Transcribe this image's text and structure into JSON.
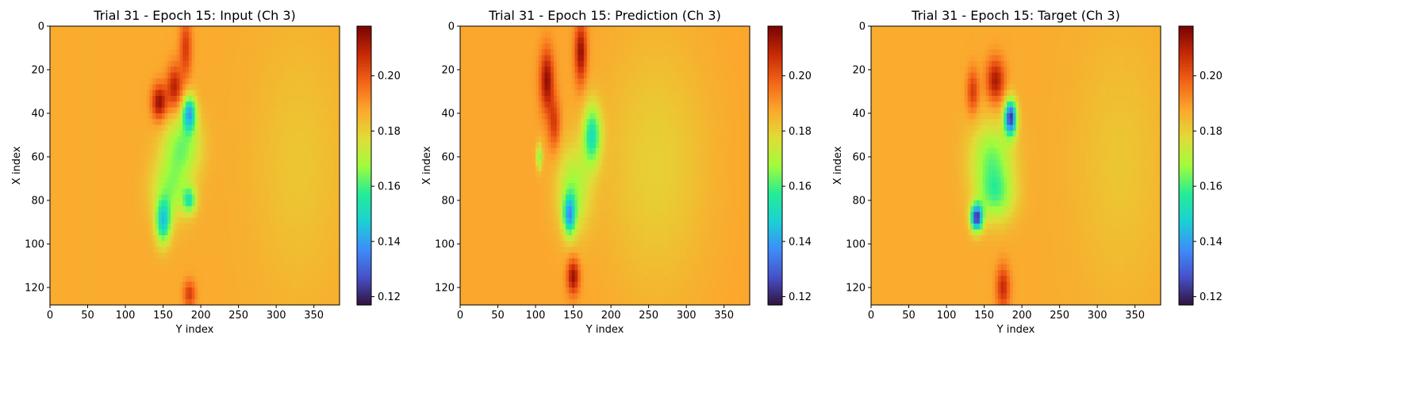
{
  "chart_data": [
    {
      "type": "heatmap",
      "title": "Trial 31 - Epoch 15: Input (Ch 3)",
      "xlabel": "Y index",
      "ylabel": "X index",
      "xlim": [
        0,
        384
      ],
      "ylim": [
        128,
        0
      ],
      "x_ticks": [
        0,
        50,
        100,
        150,
        200,
        250,
        300,
        350
      ],
      "y_ticks": [
        0,
        20,
        40,
        60,
        80,
        100,
        120
      ],
      "colorbar": {
        "range": [
          0.117,
          0.218
        ],
        "ticks": [
          0.12,
          0.14,
          0.16,
          0.18,
          0.2
        ],
        "tick_labels": [
          "0.12",
          "0.14",
          "0.16",
          "0.18",
          "0.20"
        ],
        "colormap": "turbo"
      },
      "background_value": 0.187,
      "features": [
        {
          "x": 165,
          "y": 28,
          "sx": 10,
          "sy": 10,
          "v": 0.21
        },
        {
          "x": 145,
          "y": 35,
          "sx": 10,
          "sy": 8,
          "v": 0.215
        },
        {
          "x": 180,
          "y": 10,
          "sx": 8,
          "sy": 14,
          "v": 0.205
        },
        {
          "x": 185,
          "y": 40,
          "sx": 9,
          "sy": 8,
          "v": 0.145
        },
        {
          "x": 175,
          "y": 55,
          "sx": 25,
          "sy": 14,
          "v": 0.165
        },
        {
          "x": 150,
          "y": 90,
          "sx": 10,
          "sy": 10,
          "v": 0.15
        },
        {
          "x": 160,
          "y": 75,
          "sx": 25,
          "sy": 14,
          "v": 0.168
        },
        {
          "x": 185,
          "y": 80,
          "sx": 9,
          "sy": 6,
          "v": 0.16
        },
        {
          "x": 185,
          "y": 123,
          "sx": 8,
          "sy": 6,
          "v": 0.205
        },
        {
          "x": 330,
          "y": 64,
          "sx": 60,
          "sy": 60,
          "v": 0.182
        }
      ]
    },
    {
      "type": "heatmap",
      "title": "Trial 31 - Epoch 15: Prediction (Ch 3)",
      "xlabel": "Y index",
      "ylabel": "X index",
      "xlim": [
        0,
        384
      ],
      "ylim": [
        128,
        0
      ],
      "x_ticks": [
        0,
        50,
        100,
        150,
        200,
        250,
        300,
        350
      ],
      "y_ticks": [
        0,
        20,
        40,
        60,
        80,
        100,
        120
      ],
      "colorbar": {
        "range": [
          0.117,
          0.218
        ],
        "ticks": [
          0.12,
          0.14,
          0.16,
          0.18,
          0.2
        ],
        "tick_labels": [
          "0.12",
          "0.14",
          "0.16",
          "0.18",
          "0.20"
        ],
        "colormap": "turbo"
      },
      "background_value": 0.188,
      "features": [
        {
          "x": 115,
          "y": 25,
          "sx": 9,
          "sy": 14,
          "v": 0.215
        },
        {
          "x": 160,
          "y": 12,
          "sx": 8,
          "sy": 14,
          "v": 0.215
        },
        {
          "x": 105,
          "y": 60,
          "sx": 4,
          "sy": 6,
          "v": 0.165
        },
        {
          "x": 125,
          "y": 45,
          "sx": 8,
          "sy": 12,
          "v": 0.205
        },
        {
          "x": 175,
          "y": 50,
          "sx": 12,
          "sy": 14,
          "v": 0.155
        },
        {
          "x": 145,
          "y": 87,
          "sx": 8,
          "sy": 9,
          "v": 0.15
        },
        {
          "x": 150,
          "y": 75,
          "sx": 22,
          "sy": 20,
          "v": 0.168
        },
        {
          "x": 150,
          "y": 115,
          "sx": 8,
          "sy": 8,
          "v": 0.215
        },
        {
          "x": 260,
          "y": 64,
          "sx": 70,
          "sy": 60,
          "v": 0.18
        }
      ]
    },
    {
      "type": "heatmap",
      "title": "Trial 31 - Epoch 15: Target (Ch 3)",
      "xlabel": "Y index",
      "ylabel": "X index",
      "xlim": [
        0,
        384
      ],
      "ylim": [
        128,
        0
      ],
      "x_ticks": [
        0,
        50,
        100,
        150,
        200,
        250,
        300,
        350
      ],
      "y_ticks": [
        0,
        20,
        40,
        60,
        80,
        100,
        120
      ],
      "colorbar": {
        "range": [
          0.117,
          0.218
        ],
        "ticks": [
          0.12,
          0.14,
          0.16,
          0.18,
          0.2
        ],
        "tick_labels": [
          "0.12",
          "0.14",
          "0.16",
          "0.18",
          "0.20"
        ],
        "colormap": "turbo"
      },
      "background_value": 0.187,
      "features": [
        {
          "x": 165,
          "y": 25,
          "sx": 12,
          "sy": 10,
          "v": 0.212
        },
        {
          "x": 135,
          "y": 30,
          "sx": 8,
          "sy": 10,
          "v": 0.205
        },
        {
          "x": 185,
          "y": 42,
          "sx": 8,
          "sy": 8,
          "v": 0.125
        },
        {
          "x": 160,
          "y": 60,
          "sx": 28,
          "sy": 16,
          "v": 0.165
        },
        {
          "x": 140,
          "y": 88,
          "sx": 8,
          "sy": 6,
          "v": 0.125
        },
        {
          "x": 165,
          "y": 78,
          "sx": 25,
          "sy": 12,
          "v": 0.165
        },
        {
          "x": 175,
          "y": 120,
          "sx": 9,
          "sy": 10,
          "v": 0.208
        },
        {
          "x": 330,
          "y": 64,
          "sx": 60,
          "sy": 60,
          "v": 0.182
        }
      ]
    }
  ]
}
